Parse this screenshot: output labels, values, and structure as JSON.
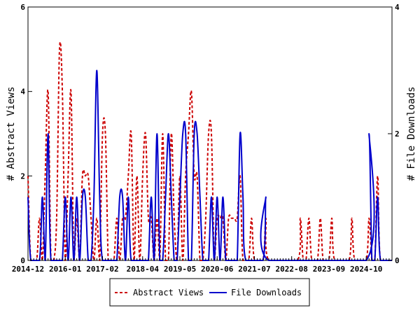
{
  "chart_data": {
    "type": "line",
    "title": "",
    "left_axis": {
      "label": "# Abstract Views",
      "range": [
        0,
        6
      ],
      "ticks": [
        "0",
        "2",
        "4",
        "6"
      ]
    },
    "right_axis": {
      "label": "# File Downloads",
      "range": [
        0,
        4
      ],
      "ticks": [
        "0",
        "2",
        "4"
      ]
    },
    "x_range": [
      "2014-12",
      "2025-07"
    ],
    "x_ticks": [
      "2014-12",
      "2016-01",
      "2017-02",
      "2018-04",
      "2019-05",
      "2020-06",
      "2021-07",
      "2022-08",
      "2023-09",
      "2024-10"
    ],
    "grid": false,
    "legend_placement": "bottom",
    "series": [
      {
        "name": "Abstract Views",
        "axis": "left",
        "color": "#cc0000",
        "dash": "dashed",
        "points": [
          [
            "2014-12",
            2
          ],
          [
            "2015-01",
            0
          ],
          [
            "2015-03",
            0
          ],
          [
            "2015-04",
            1
          ],
          [
            "2015-05",
            0
          ],
          [
            "2015-06",
            2
          ],
          [
            "2015-07",
            4
          ],
          [
            "2015-08",
            0
          ],
          [
            "2015-09",
            0
          ],
          [
            "2015-10",
            1
          ],
          [
            "2015-11",
            5
          ],
          [
            "2015-12",
            4
          ],
          [
            "2016-01",
            0
          ],
          [
            "2016-02",
            2
          ],
          [
            "2016-03",
            4
          ],
          [
            "2016-04",
            0
          ],
          [
            "2016-05",
            1
          ],
          [
            "2016-06",
            0
          ],
          [
            "2016-07",
            2
          ],
          [
            "2016-08",
            2
          ],
          [
            "2016-09",
            2
          ],
          [
            "2016-10",
            1
          ],
          [
            "2016-11",
            0
          ],
          [
            "2016-12",
            1
          ],
          [
            "2017-01",
            0
          ],
          [
            "2017-02",
            3
          ],
          [
            "2017-03",
            3
          ],
          [
            "2017-04",
            0
          ],
          [
            "2017-05",
            0
          ],
          [
            "2017-06",
            0
          ],
          [
            "2017-07",
            1
          ],
          [
            "2017-08",
            0
          ],
          [
            "2017-09",
            1
          ],
          [
            "2017-10",
            1
          ],
          [
            "2017-11",
            2
          ],
          [
            "2017-12",
            3
          ],
          [
            "2018-01",
            0
          ],
          [
            "2018-02",
            2
          ],
          [
            "2018-03",
            0
          ],
          [
            "2018-04",
            2
          ],
          [
            "2018-05",
            3
          ],
          [
            "2018-06",
            1
          ],
          [
            "2018-07",
            1
          ],
          [
            "2018-08",
            0
          ],
          [
            "2018-09",
            1
          ],
          [
            "2018-10",
            0
          ],
          [
            "2018-11",
            3
          ],
          [
            "2018-12",
            0
          ],
          [
            "2019-01",
            0
          ],
          [
            "2019-02",
            3
          ],
          [
            "2019-03",
            1
          ],
          [
            "2019-04",
            0
          ],
          [
            "2019-05",
            2
          ],
          [
            "2019-06",
            0
          ],
          [
            "2019-07",
            2
          ],
          [
            "2019-08",
            3
          ],
          [
            "2019-09",
            4
          ],
          [
            "2019-10",
            2
          ],
          [
            "2019-11",
            2
          ],
          [
            "2019-12",
            0
          ],
          [
            "2020-01",
            0
          ],
          [
            "2020-02",
            1
          ],
          [
            "2020-03",
            3
          ],
          [
            "2020-04",
            3
          ],
          [
            "2020-05",
            0
          ],
          [
            "2020-06",
            1
          ],
          [
            "2020-07",
            1
          ],
          [
            "2020-08",
            1
          ],
          [
            "2020-09",
            0
          ],
          [
            "2020-10",
            1
          ],
          [
            "2020-11",
            1
          ],
          [
            "2020-12",
            1
          ],
          [
            "2021-01",
            1
          ],
          [
            "2021-02",
            2
          ],
          [
            "2021-03",
            0
          ],
          [
            "2021-05",
            0
          ],
          [
            "2021-06",
            1
          ],
          [
            "2021-07",
            0
          ],
          [
            "2021-10",
            0
          ],
          [
            "2021-11",
            1
          ],
          [
            "2021-12",
            0
          ],
          [
            "2022-10",
            0
          ],
          [
            "2022-11",
            1
          ],
          [
            "2022-12",
            0
          ],
          [
            "2023-01",
            0
          ],
          [
            "2023-02",
            1
          ],
          [
            "2023-03",
            0
          ],
          [
            "2023-05",
            0
          ],
          [
            "2023-06",
            1
          ],
          [
            "2023-07",
            0
          ],
          [
            "2023-09",
            0
          ],
          [
            "2023-10",
            1
          ],
          [
            "2023-11",
            0
          ],
          [
            "2024-04",
            0
          ],
          [
            "2024-05",
            1
          ],
          [
            "2024-06",
            0
          ],
          [
            "2024-10",
            0
          ],
          [
            "2024-11",
            1
          ],
          [
            "2024-12",
            0
          ],
          [
            "2025-01",
            0
          ],
          [
            "2025-02",
            2
          ],
          [
            "2025-03",
            0
          ],
          [
            "2025-07",
            0
          ]
        ]
      },
      {
        "name": "File Downloads",
        "axis": "right",
        "color": "#0000cc",
        "dash": "solid",
        "points": [
          [
            "2014-12",
            1
          ],
          [
            "2015-01",
            0
          ],
          [
            "2015-04",
            0
          ],
          [
            "2015-05",
            1
          ],
          [
            "2015-06",
            0
          ],
          [
            "2015-07",
            2
          ],
          [
            "2015-08",
            0
          ],
          [
            "2015-11",
            0
          ],
          [
            "2015-12",
            0
          ],
          [
            "2016-01",
            1
          ],
          [
            "2016-02",
            0
          ],
          [
            "2016-03",
            1
          ],
          [
            "2016-04",
            0
          ],
          [
            "2016-05",
            1
          ],
          [
            "2016-06",
            0
          ],
          [
            "2016-07",
            1
          ],
          [
            "2016-08",
            1
          ],
          [
            "2016-09",
            0
          ],
          [
            "2016-10",
            0
          ],
          [
            "2016-11",
            1
          ],
          [
            "2016-12",
            3
          ],
          [
            "2017-01",
            1
          ],
          [
            "2017-02",
            0
          ],
          [
            "2017-05",
            0
          ],
          [
            "2017-06",
            0
          ],
          [
            "2017-07",
            0
          ],
          [
            "2017-08",
            1
          ],
          [
            "2017-09",
            1
          ],
          [
            "2017-10",
            0
          ],
          [
            "2017-11",
            1
          ],
          [
            "2017-12",
            0
          ],
          [
            "2018-03",
            0
          ],
          [
            "2018-04",
            0
          ],
          [
            "2018-05",
            0
          ],
          [
            "2018-06",
            0
          ],
          [
            "2018-07",
            1
          ],
          [
            "2018-08",
            0
          ],
          [
            "2018-09",
            2
          ],
          [
            "2018-10",
            0
          ],
          [
            "2018-11",
            0
          ],
          [
            "2018-12",
            1
          ],
          [
            "2019-01",
            2
          ],
          [
            "2019-02",
            1
          ],
          [
            "2019-03",
            0
          ],
          [
            "2019-04",
            0
          ],
          [
            "2019-05",
            1
          ],
          [
            "2019-06",
            2
          ],
          [
            "2019-07",
            2
          ],
          [
            "2019-08",
            0
          ],
          [
            "2019-09",
            0
          ],
          [
            "2019-10",
            2
          ],
          [
            "2019-11",
            2
          ],
          [
            "2019-12",
            1
          ],
          [
            "2020-01",
            0
          ],
          [
            "2020-02",
            0
          ],
          [
            "2020-03",
            0
          ],
          [
            "2020-04",
            1
          ],
          [
            "2020-05",
            0
          ],
          [
            "2020-06",
            1
          ],
          [
            "2020-07",
            0
          ],
          [
            "2020-08",
            1
          ],
          [
            "2020-09",
            0
          ],
          [
            "2020-10",
            0
          ],
          [
            "2020-11",
            0
          ],
          [
            "2020-12",
            0
          ],
          [
            "2021-01",
            0
          ],
          [
            "2021-02",
            2
          ],
          [
            "2021-03",
            1
          ],
          [
            "2021-04",
            0
          ],
          [
            "2021-10",
            0
          ],
          [
            "2021-11",
            1
          ],
          [
            "2021-12",
            0
          ],
          [
            "2024-10",
            0
          ],
          [
            "2024-11",
            2
          ],
          [
            "2024-12",
            0
          ],
          [
            "2025-01",
            0
          ],
          [
            "2025-02",
            1
          ],
          [
            "2025-03",
            0
          ],
          [
            "2025-07",
            0
          ]
        ]
      }
    ]
  }
}
